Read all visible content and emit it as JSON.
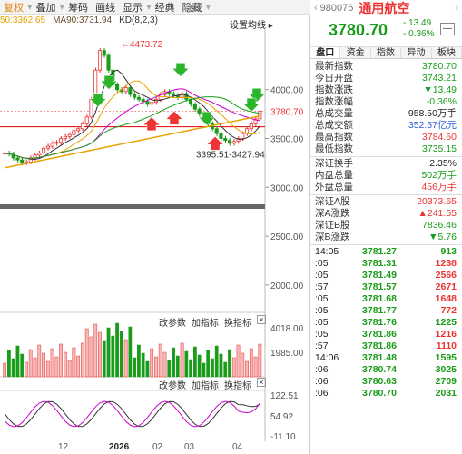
{
  "toolbar": {
    "items": [
      "复权",
      "叠加",
      "筹码",
      "画线",
      "显示",
      "经典",
      "隐藏"
    ]
  },
  "legend": {
    "ma60": "50:3362.65",
    "ma90": "MA90:3731.94",
    "kd": "KD(8,2,3)",
    "setting": "设置均线"
  },
  "main_chart": {
    "y_labels": [
      "4000.00",
      "3500.00",
      "3000.00",
      "2500.00",
      "2000.00"
    ],
    "current_price_label": "3780.70",
    "high_label": "4473.72",
    "low_label": "3395.51-3427.94"
  },
  "volume_panel": {
    "buttons": [
      "改参数",
      "加指标",
      "换指标"
    ],
    "close": "×",
    "y_labels": [
      "4018.00",
      "1985.00"
    ]
  },
  "kd_panel": {
    "buttons": [
      "改参数",
      "加指标",
      "换指标"
    ],
    "close": "×",
    "y_labels": [
      "122.51",
      "54.92",
      "-11.10"
    ]
  },
  "x_axis": [
    "12",
    "2026",
    "02",
    "03",
    "04"
  ],
  "quote": {
    "code": "980076",
    "name": "通用航空",
    "price": "3780.70",
    "change": "- 13.49",
    "change_pct": "- 0.36%",
    "btn": "—",
    "tabs": [
      "盘口",
      "资金",
      "指数",
      "异动",
      "板块"
    ],
    "rows1": [
      {
        "k": "最新指数",
        "v": "3780.70",
        "c": "green"
      },
      {
        "k": "今日开盘",
        "v": "3743.21",
        "c": "green"
      },
      {
        "k": "指数涨跌",
        "v": "▼13.49",
        "c": "green"
      },
      {
        "k": "指数涨幅",
        "v": "-0.36%",
        "c": "green"
      },
      {
        "k": "总成交量",
        "v": "958.50万手",
        "c": ""
      },
      {
        "k": "总成交额",
        "v": "352.57亿元",
        "c": "blue"
      },
      {
        "k": "最高指数",
        "v": "3784.60",
        "c": "red"
      },
      {
        "k": "最低指数",
        "v": "3735.15",
        "c": "green"
      }
    ],
    "rows2": [
      {
        "k": "深证换手",
        "v": "2.35%",
        "c": ""
      },
      {
        "k": "内盘总量",
        "v": "502万手",
        "c": "green"
      },
      {
        "k": "外盘总量",
        "v": "456万手",
        "c": "red"
      }
    ],
    "rows3": [
      {
        "k": "深证A股",
        "v": "20373.65",
        "c": "red"
      },
      {
        "k": "深A涨跌",
        "v": "▲241.55",
        "c": "red"
      },
      {
        "k": "深证B股",
        "v": "7836.46",
        "c": "green"
      },
      {
        "k": "深B涨跌",
        "v": "▼5.76",
        "c": "green"
      }
    ],
    "ticks": [
      {
        "t": "14:05",
        "p": "3781.27",
        "v": "913",
        "g": true
      },
      {
        "t": ":05",
        "p": "3781.31",
        "v": "1238",
        "g": false
      },
      {
        "t": ":05",
        "p": "3781.49",
        "v": "2566",
        "g": false
      },
      {
        "t": ":57",
        "p": "3781.57",
        "v": "2671",
        "g": false
      },
      {
        "t": ":05",
        "p": "3781.68",
        "v": "1648",
        "g": false
      },
      {
        "t": ":05",
        "p": "3781.77",
        "v": "772",
        "g": false
      },
      {
        "t": ":05",
        "p": "3781.76",
        "v": "1225",
        "g": true
      },
      {
        "t": ":05",
        "p": "3781.86",
        "v": "1216",
        "g": false
      },
      {
        "t": ":57",
        "p": "3781.86",
        "v": "1110",
        "g": false
      },
      {
        "t": "14:06",
        "p": "3781.48",
        "v": "1595",
        "g": true
      },
      {
        "t": ":06",
        "p": "3780.74",
        "v": "3025",
        "g": true
      },
      {
        "t": ":06",
        "p": "3780.63",
        "v": "2709",
        "g": true
      },
      {
        "t": ":06",
        "p": "3780.70",
        "v": "2031",
        "g": true
      }
    ]
  },
  "colors": {
    "up": "#e33333",
    "down": "#1a9c1a",
    "ma_gold": "#e8a300",
    "ma_brown": "#6b4d2e",
    "accent": "#e67e00"
  }
}
